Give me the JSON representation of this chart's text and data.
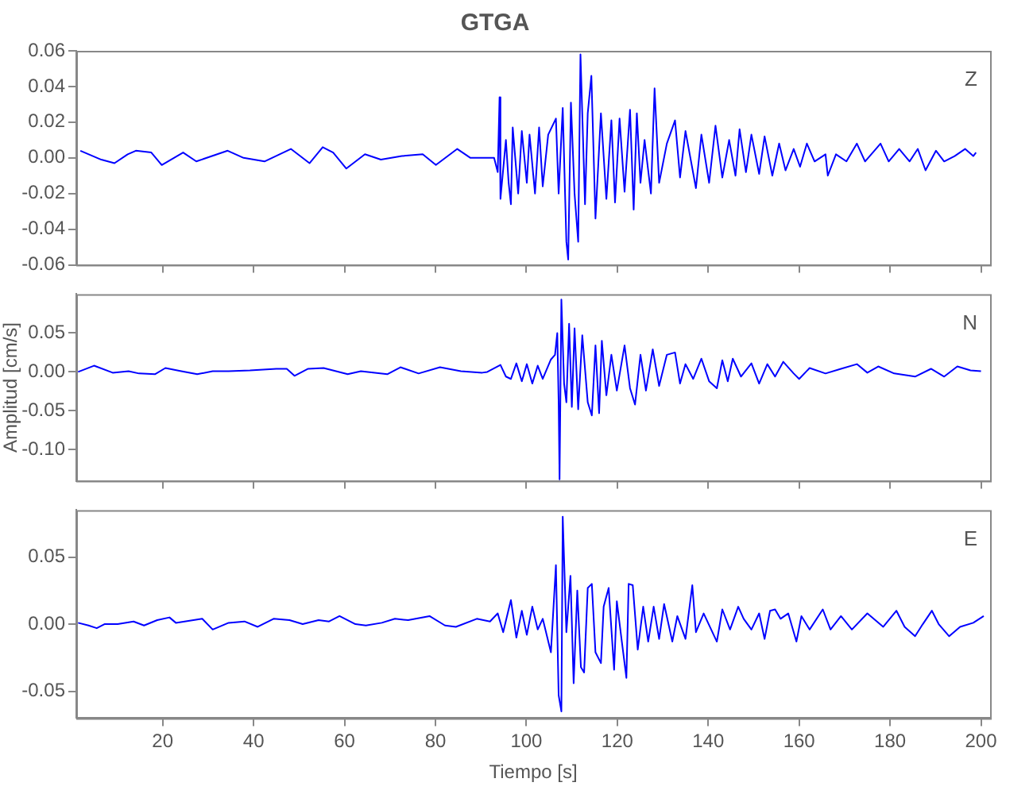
{
  "chart_data": [
    {
      "type": "line",
      "title": "GTGA",
      "annotations": [
        "Z"
      ],
      "legend": false,
      "marker": "none",
      "tick_labels": "y",
      "xlim": [
        1,
        202
      ],
      "xticks": [
        20,
        40,
        60,
        80,
        100,
        120,
        140,
        160,
        180,
        200
      ],
      "ylim": [
        -0.06,
        0.06
      ],
      "yticks": [
        {
          "value": -0.06,
          "label": "-0.06"
        },
        {
          "value": -0.04,
          "label": "-0.04"
        },
        {
          "value": -0.02,
          "label": "-0.02"
        },
        {
          "value": 0,
          "label": "0.00"
        },
        {
          "value": 0.02,
          "label": "0.02"
        },
        {
          "value": 0.04,
          "label": "0.04"
        },
        {
          "value": 0.06,
          "label": "0.06"
        }
      ],
      "series": [
        {
          "color": "#0000ff",
          "x": [
            1.9,
            6.5,
            9.4,
            12.3,
            14.1,
            17.5,
            19.8,
            24.5,
            27.4,
            34.3,
            37.8,
            42.4,
            48.2,
            52.3,
            55.2,
            57.5,
            60.4,
            64.5,
            68,
            72.6,
            77.2,
            80.1,
            84.8,
            87.7,
            92.9,
            93.7,
            94.1,
            94.3,
            95.5,
            96.1,
            96.6,
            97.0,
            98.2,
            99.0,
            100.1,
            100.7,
            101.9,
            102.8,
            103.6,
            104.8,
            106.5,
            107.1,
            108.0,
            108.8,
            109.2,
            109.8,
            110.6,
            111.4,
            111.9,
            112.9,
            113.5,
            114.3,
            115.2,
            116.4,
            117.6,
            118.7,
            119.5,
            120.5,
            121.6,
            122.8,
            123.6,
            124.3,
            125.1,
            126.0,
            127.4,
            128.2,
            129.2,
            130.9,
            132.7,
            133.8,
            135.0,
            137.3,
            138.5,
            140.2,
            141.6,
            143.1,
            144.6,
            146.0,
            146.9,
            148.3,
            149.5,
            151.2,
            152.4,
            154.1,
            155.6,
            157.0,
            158.8,
            160.2,
            161.7,
            163.4,
            165.8,
            166.3,
            168.1,
            170.4,
            172.7,
            174.5,
            177.9,
            179.7,
            182.0,
            184.3,
            186.1,
            187.8,
            190.1,
            191.9,
            194.2,
            196.5,
            198.3,
            198.9
          ],
          "values": [
            0.004,
            -0.001,
            -0.003,
            0.002,
            0.004,
            0.003,
            -0.004,
            0.003,
            -0.002,
            0.004,
            0.0,
            -0.002,
            0.005,
            -0.003,
            0.006,
            0.003,
            -0.006,
            0.002,
            -0.001,
            0.001,
            0.002,
            -0.004,
            0.005,
            0.0,
            0.0,
            -0.008,
            0.034,
            -0.023,
            0.01,
            -0.014,
            -0.026,
            0.017,
            -0.02,
            0.015,
            -0.014,
            0.013,
            -0.02,
            0.017,
            -0.016,
            0.013,
            0.022,
            -0.02,
            0.028,
            -0.047,
            -0.057,
            0.031,
            -0.02,
            -0.047,
            0.058,
            -0.026,
            0.025,
            0.046,
            -0.034,
            0.025,
            -0.023,
            0.021,
            -0.025,
            0.022,
            -0.019,
            0.027,
            -0.029,
            0.025,
            -0.014,
            0.01,
            -0.02,
            0.039,
            -0.014,
            0.008,
            0.021,
            -0.011,
            0.015,
            -0.017,
            0.013,
            -0.014,
            0.018,
            -0.011,
            0.01,
            -0.01,
            0.016,
            -0.008,
            0.013,
            -0.009,
            0.012,
            -0.01,
            0.008,
            -0.007,
            0.005,
            -0.005,
            0.008,
            -0.002,
            0.002,
            -0.01,
            0.002,
            -0.002,
            0.008,
            -0.002,
            0.008,
            -0.002,
            0.005,
            -0.002,
            0.005,
            -0.007,
            0.004,
            -0.002,
            0.001,
            0.005,
            0.001,
            0.003
          ]
        }
      ]
    },
    {
      "type": "line",
      "ylabel": "Amplitud [cm/s]",
      "annotations": [
        "N"
      ],
      "legend": false,
      "marker": "none",
      "tick_labels": "y",
      "xlim": [
        1,
        202
      ],
      "xticks": [
        20,
        40,
        60,
        80,
        100,
        120,
        140,
        160,
        180,
        200
      ],
      "ylim": [
        -0.14,
        0.1
      ],
      "yticks": [
        {
          "value": -0.1,
          "label": "-0.10"
        },
        {
          "value": -0.05,
          "label": "-0.05"
        },
        {
          "value": 0,
          "label": "0.00"
        },
        {
          "value": 0.05,
          "label": "0.05"
        }
      ],
      "series": [
        {
          "color": "#0000ff",
          "x": [
            1.4,
            4.9,
            9.0,
            12.5,
            14.8,
            18.3,
            20.6,
            24.1,
            27.6,
            31.0,
            34.5,
            39.2,
            45.0,
            47.3,
            49.0,
            52.0,
            55.4,
            60.7,
            63.6,
            69.4,
            72.3,
            76.3,
            81.0,
            85.6,
            90.3,
            91.4,
            94.3,
            95.5,
            96.6,
            97.8,
            99.0,
            100.1,
            101.3,
            102.5,
            103.6,
            105.4,
            106.3,
            106.8,
            107.1,
            107.3,
            107.7,
            108.3,
            108.8,
            109.4,
            110.0,
            110.6,
            111.4,
            112.3,
            113.5,
            114.4,
            115.2,
            116.0,
            116.6,
            117.6,
            118.7,
            119.9,
            121.6,
            122.8,
            123.9,
            125.1,
            126.3,
            127.8,
            129.2,
            130.9,
            132.7,
            133.8,
            135.0,
            136.7,
            138.5,
            140.2,
            141.9,
            143.1,
            144.3,
            145.4,
            147.2,
            149.5,
            151.2,
            153.0,
            154.7,
            156.5,
            158.8,
            160.0,
            162.3,
            165.8,
            169.2,
            172.7,
            175.0,
            177.4,
            180.9,
            185.5,
            189.0,
            191.9,
            194.8,
            197.7,
            200.0
          ],
          "values": [
            0.0,
            0.008,
            -0.001,
            0.001,
            -0.002,
            -0.003,
            0.005,
            0.001,
            -0.003,
            0.001,
            0.001,
            0.002,
            0.004,
            0.004,
            -0.005,
            0.004,
            0.005,
            -0.003,
            0.001,
            -0.003,
            0.006,
            -0.002,
            0.006,
            0.001,
            -0.001,
            0.0,
            0.009,
            -0.006,
            -0.009,
            0.011,
            -0.012,
            0.01,
            -0.015,
            0.008,
            -0.009,
            0.016,
            0.022,
            0.05,
            -0.039,
            -0.138,
            0.093,
            -0.015,
            -0.039,
            0.062,
            -0.045,
            0.056,
            -0.048,
            0.047,
            -0.039,
            -0.056,
            0.034,
            -0.053,
            0.04,
            -0.03,
            0.022,
            -0.024,
            0.034,
            -0.021,
            -0.042,
            0.022,
            -0.024,
            0.029,
            -0.018,
            0.022,
            0.025,
            -0.015,
            0.01,
            -0.009,
            0.017,
            -0.012,
            -0.021,
            0.015,
            -0.012,
            0.017,
            -0.006,
            0.011,
            -0.015,
            0.01,
            -0.006,
            0.013,
            -0.002,
            -0.009,
            0.005,
            -0.002,
            0.004,
            0.01,
            -0.001,
            0.007,
            -0.002,
            -0.006,
            0.004,
            -0.006,
            0.007,
            0.002,
            0.001
          ]
        }
      ]
    },
    {
      "type": "line",
      "xlabel": "Tiempo [s]",
      "annotations": [
        "E"
      ],
      "legend": false,
      "marker": "none",
      "xlim": [
        1,
        202
      ],
      "xticks": [
        20,
        40,
        60,
        80,
        100,
        120,
        140,
        160,
        180,
        200
      ],
      "ylim": [
        -0.07,
        0.085
      ],
      "yticks": [
        {
          "value": -0.05,
          "label": "-0.05"
        },
        {
          "value": 0,
          "label": "0.00"
        },
        {
          "value": 0.05,
          "label": "0.05"
        }
      ],
      "series": [
        {
          "color": "#0000ff",
          "x": [
            1.4,
            3.7,
            5.5,
            7.2,
            10.1,
            13.6,
            15.9,
            18.8,
            21.5,
            22.9,
            28.7,
            31.0,
            34.5,
            38.0,
            40.9,
            44.4,
            47.9,
            50.8,
            54.3,
            56.6,
            58.9,
            62.4,
            64.7,
            68.2,
            71.1,
            74.0,
            78.7,
            82.1,
            84.5,
            89.1,
            92.0,
            93.7,
            94.9,
            96.1,
            96.6,
            97.8,
            99.0,
            100.1,
            101.3,
            102.5,
            103.6,
            105.4,
            106.5,
            107.1,
            107.7,
            108.0,
            108.8,
            109.7,
            110.4,
            111.2,
            112.0,
            112.7,
            113.5,
            114.4,
            115.2,
            116.4,
            117.0,
            118.1,
            119.3,
            119.9,
            121.0,
            122.0,
            122.5,
            123.4,
            124.5,
            125.7,
            126.8,
            128.0,
            129.2,
            130.3,
            132.1,
            133.2,
            135.0,
            136.5,
            137.3,
            139.0,
            141.9,
            143.1,
            144.8,
            146.6,
            147.8,
            149.5,
            151.2,
            152.4,
            153.6,
            154.7,
            155.9,
            157.6,
            159.4,
            160.5,
            162.3,
            165.2,
            166.9,
            169.2,
            171.6,
            175.0,
            178.5,
            181.4,
            183.2,
            185.5,
            187.2,
            189.2,
            190.7,
            193.0,
            195.4,
            198.3,
            200.6
          ],
          "values": [
            0.001,
            -0.001,
            -0.003,
            0.0,
            0.0,
            0.002,
            -0.001,
            0.003,
            0.005,
            0.001,
            0.004,
            -0.004,
            0.001,
            0.002,
            -0.002,
            0.004,
            0.003,
            0.0,
            0.003,
            0.002,
            0.006,
            0.0,
            -0.001,
            0.001,
            0.004,
            0.003,
            0.006,
            -0.001,
            -0.002,
            0.004,
            0.002,
            0.008,
            -0.006,
            0.011,
            0.018,
            -0.01,
            0.01,
            -0.008,
            0.013,
            -0.004,
            0.004,
            -0.021,
            0.044,
            -0.053,
            -0.065,
            0.08,
            -0.006,
            0.036,
            -0.044,
            0.025,
            -0.032,
            -0.036,
            0.027,
            0.03,
            -0.021,
            -0.029,
            0.013,
            0.027,
            -0.034,
            0.017,
            -0.013,
            -0.04,
            0.03,
            0.029,
            -0.019,
            0.013,
            -0.013,
            0.013,
            -0.011,
            0.015,
            -0.013,
            0.006,
            -0.011,
            0.029,
            -0.006,
            0.008,
            -0.013,
            0.011,
            -0.004,
            0.013,
            0.004,
            -0.004,
            0.008,
            -0.011,
            0.01,
            0.011,
            0.004,
            0.008,
            -0.013,
            0.006,
            -0.004,
            0.011,
            -0.004,
            0.006,
            -0.004,
            0.008,
            -0.002,
            0.01,
            -0.002,
            -0.009,
            0.0,
            0.01,
            0.0,
            -0.009,
            -0.002,
            0.001,
            0.006
          ]
        }
      ]
    }
  ]
}
